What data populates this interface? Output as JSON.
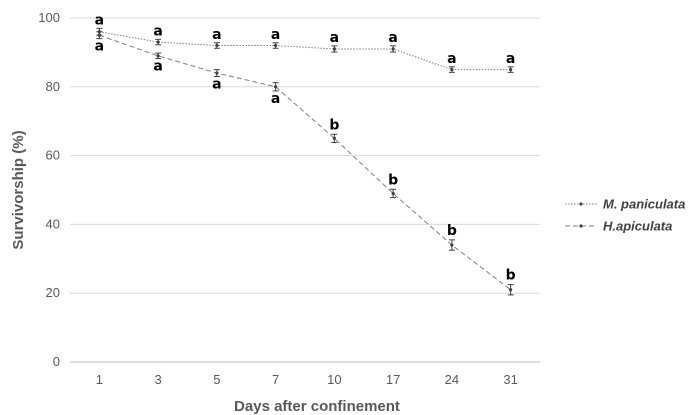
{
  "chart_data": {
    "type": "line",
    "xlabel": "Days after confinement",
    "ylabel": "Survivorship (%)",
    "categories": [
      "1",
      "3",
      "5",
      "7",
      "10",
      "17",
      "24",
      "31"
    ],
    "yticks": [
      "0",
      "20",
      "40",
      "60",
      "80",
      "100"
    ],
    "ylim": [
      0,
      100
    ],
    "grid": "horizontal",
    "legend_position": "right",
    "series": [
      {
        "name": "M. paniculata",
        "values": [
          96,
          93,
          92,
          92,
          91,
          91,
          85,
          85
        ],
        "errors": [
          1,
          0.8,
          0.8,
          0.8,
          0.9,
          0.9,
          0.8,
          0.8
        ],
        "labels": [
          "a",
          "a",
          "a",
          "a",
          "a",
          "a",
          "a",
          "a"
        ],
        "line_style": "dotted",
        "color": "#7f7f7f"
      },
      {
        "name": "H.apiculata",
        "values": [
          95,
          89,
          84,
          80,
          65,
          49,
          34,
          21
        ],
        "errors": [
          1,
          0.8,
          1,
          1.2,
          1.2,
          1.2,
          1.5,
          1.5
        ],
        "labels": [
          "a",
          "a",
          "a",
          "a",
          "b",
          "b",
          "b",
          "b"
        ],
        "line_style": "dashed",
        "color": "#7f7f7f"
      }
    ]
  }
}
